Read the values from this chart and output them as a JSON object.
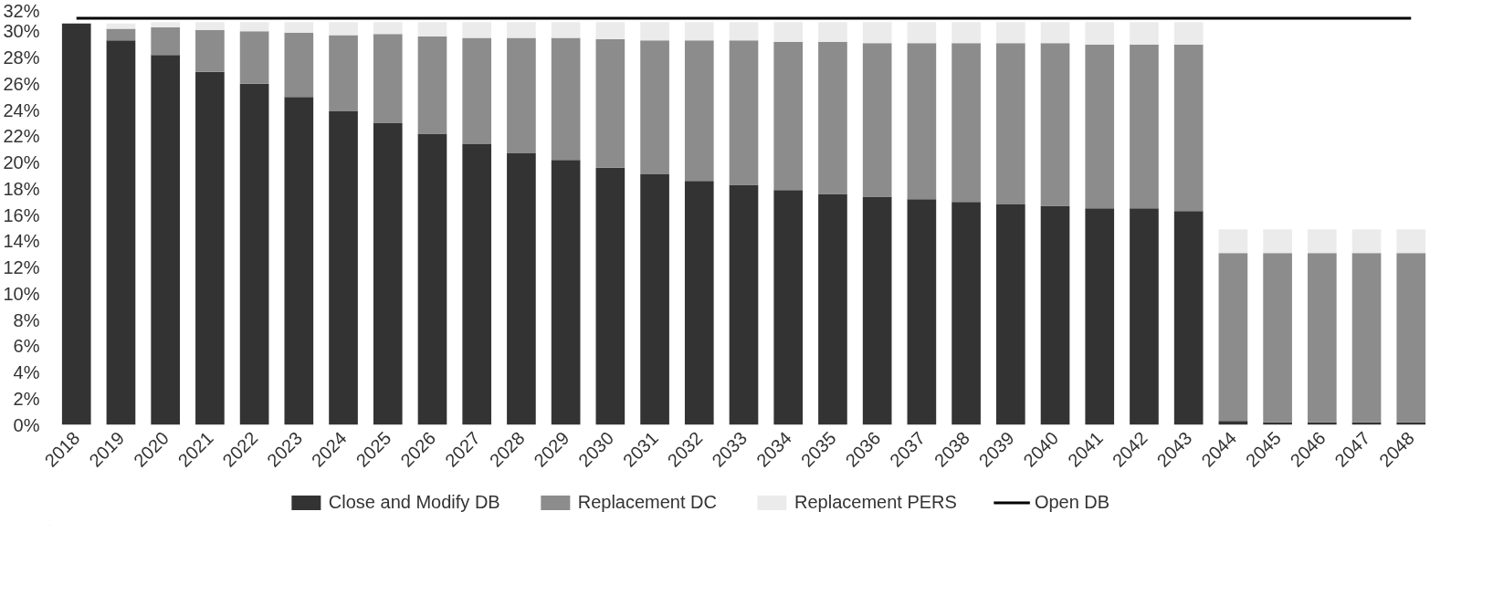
{
  "chart_data": {
    "type": "bar",
    "stacked": true,
    "categories": [
      "2018",
      "2019",
      "2020",
      "2021",
      "2022",
      "2023",
      "2024",
      "2025",
      "2026",
      "2027",
      "2028",
      "2029",
      "2030",
      "2031",
      "2032",
      "2033",
      "2034",
      "2035",
      "2036",
      "2037",
      "2038",
      "2039",
      "2040",
      "2041",
      "2042",
      "2043",
      "2044",
      "2045",
      "2046",
      "2047",
      "2048"
    ],
    "series": [
      {
        "name": "Close and Modify DB",
        "color": "#333333",
        "values": [
          30.6,
          29.3,
          28.2,
          26.9,
          26.0,
          25.0,
          23.9,
          23.0,
          22.2,
          21.4,
          20.7,
          20.2,
          19.6,
          19.1,
          18.6,
          18.3,
          17.9,
          17.6,
          17.4,
          17.2,
          17.0,
          16.8,
          16.7,
          16.5,
          16.5,
          16.3,
          0.3,
          0.2,
          0.2,
          0.2,
          0.2
        ]
      },
      {
        "name": "Replacement DC",
        "color": "#8c8c8c",
        "values": [
          0,
          0.9,
          2.1,
          3.2,
          4.0,
          4.9,
          5.8,
          6.8,
          7.4,
          8.1,
          8.8,
          9.3,
          9.8,
          10.2,
          10.7,
          11.0,
          11.3,
          11.6,
          11.7,
          11.9,
          12.1,
          12.3,
          12.4,
          12.5,
          12.5,
          12.7,
          12.8,
          12.9,
          12.9,
          12.9,
          12.9
        ]
      },
      {
        "name": "Replacement PERS",
        "color": "#ebebeb",
        "values": [
          0,
          0.4,
          0.4,
          0.6,
          0.7,
          0.8,
          1.0,
          0.9,
          1.1,
          1.2,
          1.2,
          1.2,
          1.3,
          1.4,
          1.4,
          1.4,
          1.5,
          1.5,
          1.6,
          1.6,
          1.6,
          1.6,
          1.6,
          1.7,
          1.7,
          1.7,
          1.8,
          1.8,
          1.8,
          1.8,
          1.8
        ]
      },
      {
        "name": "Open DB",
        "type": "line",
        "color": "#000000",
        "values": [
          31.0,
          31.0,
          31.0,
          31.0,
          31.0,
          31.0,
          31.0,
          31.0,
          31.0,
          31.0,
          31.0,
          31.0,
          31.0,
          31.0,
          31.0,
          31.0,
          31.0,
          31.0,
          31.0,
          31.0,
          31.0,
          31.0,
          31.0,
          31.0,
          31.0,
          31.0,
          31.0,
          31.0,
          31.0,
          31.0,
          31.0
        ]
      }
    ],
    "ylim": [
      0,
      32
    ],
    "yticks": [
      {
        "value": 0,
        "label": "0%"
      },
      {
        "value": 2,
        "label": "2%"
      },
      {
        "value": 4,
        "label": "4%"
      },
      {
        "value": 6,
        "label": "6%"
      },
      {
        "value": 8,
        "label": "8%"
      },
      {
        "value": 10,
        "label": "10%"
      },
      {
        "value": 12,
        "label": "12%"
      },
      {
        "value": 14,
        "label": "14%"
      },
      {
        "value": 16,
        "label": "16%"
      },
      {
        "value": 18,
        "label": "18%"
      },
      {
        "value": 20,
        "label": "20%"
      },
      {
        "value": 22,
        "label": "22%"
      },
      {
        "value": 24,
        "label": "24%"
      },
      {
        "value": 26,
        "label": "26%"
      },
      {
        "value": 28,
        "label": "28%"
      },
      {
        "value": 30,
        "label": "30%"
      },
      {
        "value": 32,
        "label": "32%"
      }
    ],
    "legend": "bottom"
  }
}
